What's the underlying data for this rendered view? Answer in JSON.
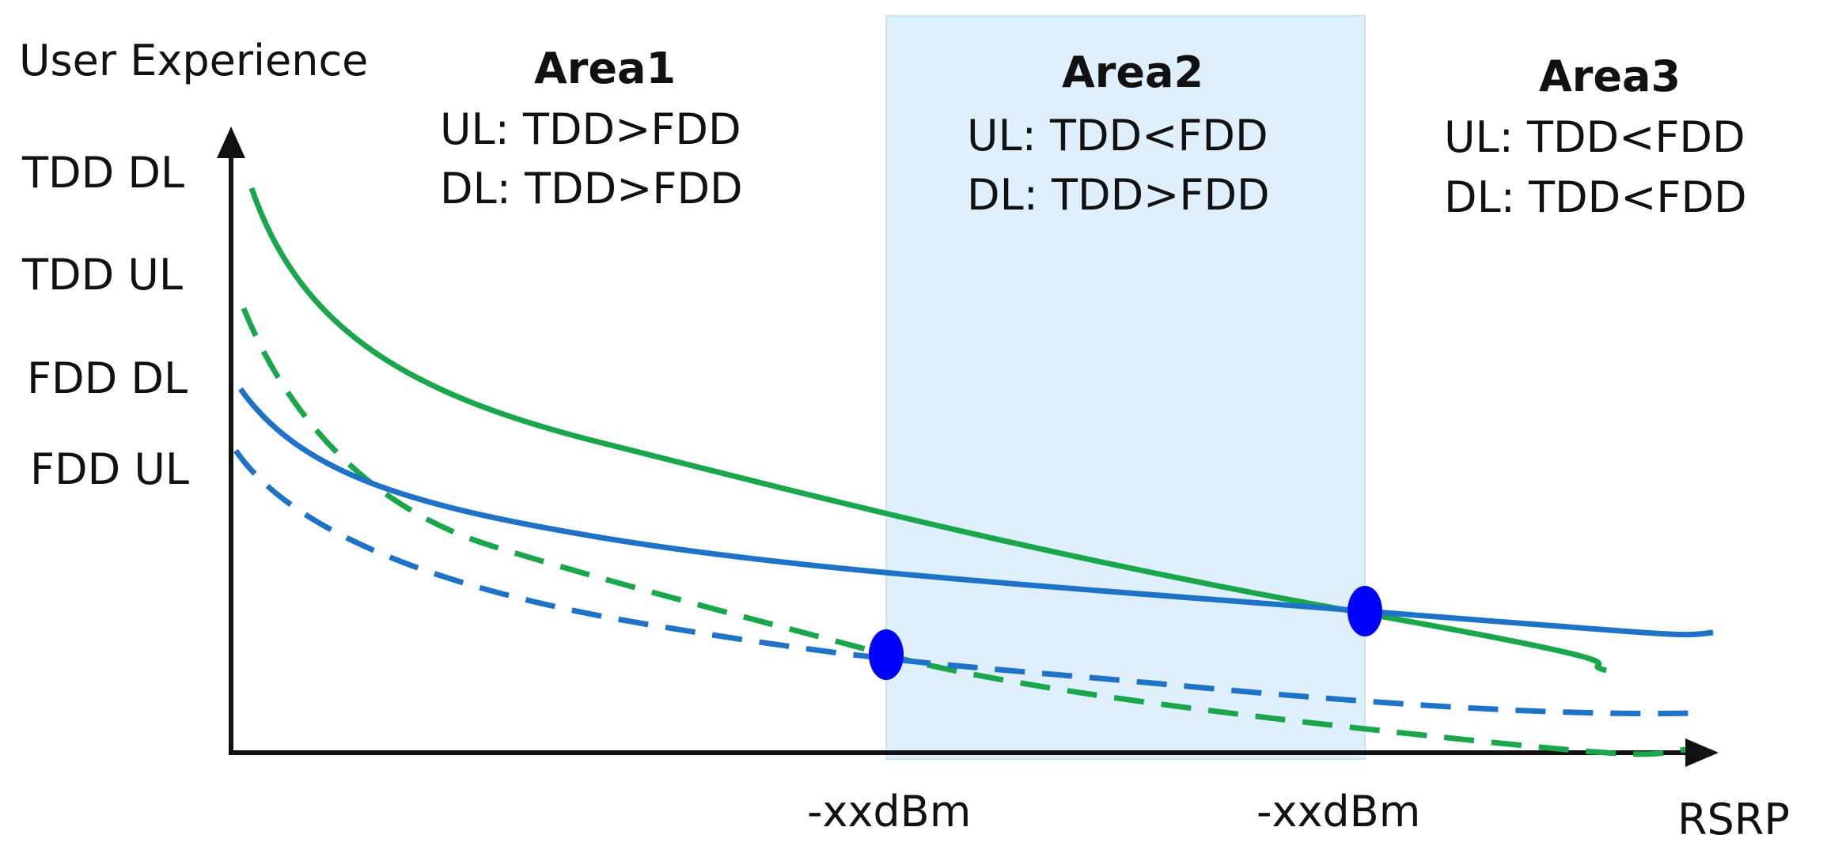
{
  "chart_data": {
    "type": "line",
    "ylabel": "User Experience",
    "xlabel": "RSRP",
    "y_tick_labels": [
      "TDD DL",
      "TDD UL",
      "FDD DL",
      "FDD UL"
    ],
    "x_tick_labels": [
      "-xxdBm",
      "-xxdBm"
    ],
    "regions": [
      {
        "title": "Area1",
        "ul": "UL: TDD>FDD",
        "dl": "DL: TDD>FDD",
        "highlighted": false
      },
      {
        "title": "Area2",
        "ul": "UL: TDD<FDD",
        "dl": "DL: TDD>FDD",
        "highlighted": true
      },
      {
        "title": "Area3",
        "ul": "UL: TDD<FDD",
        "dl": "DL: TDD<FDD",
        "highlighted": false
      }
    ],
    "series": [
      {
        "line_style": "solid",
        "color": "#1aa64b"
      },
      {
        "line_style": "dashed",
        "color": "#1aa64b"
      },
      {
        "line_style": "solid",
        "color": "#1e73c8"
      },
      {
        "line_style": "dashed",
        "color": "#1e73c8"
      }
    ],
    "intersection_markers": [
      {
        "at": "x_tick_1",
        "color": "#0000ff"
      },
      {
        "at": "x_tick_2",
        "color": "#0000ff"
      }
    ],
    "colors": {
      "highlight_band": "#dff0fc",
      "axis": "#111111"
    },
    "grid": false,
    "legend": "none"
  }
}
